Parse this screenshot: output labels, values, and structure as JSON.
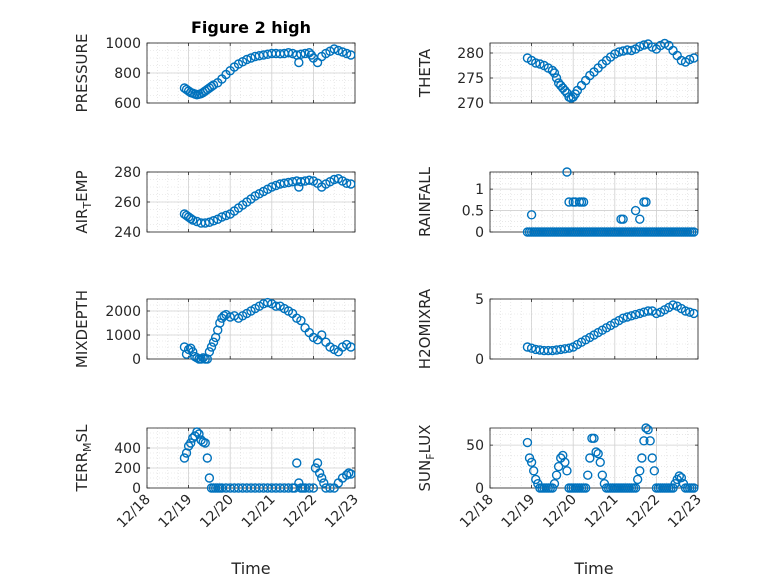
{
  "figure": {
    "background": "#ffffff",
    "marker_color": "#0072BD"
  },
  "chart_data": [
    {
      "type": "scatter",
      "title": "Figure 2 high",
      "ylabel": "PRESSURE",
      "xlabel": "",
      "xlim": [
        18,
        23
      ],
      "ylim": [
        600,
        1000
      ],
      "yticks": [
        600,
        800,
        1000
      ],
      "yticklabels": [
        "600",
        "800",
        "1000"
      ],
      "xtick_labels_shown": false,
      "grid": true,
      "x": [
        18.9,
        18.95,
        19.0,
        19.05,
        19.1,
        19.15,
        19.2,
        19.25,
        19.3,
        19.35,
        19.4,
        19.45,
        19.5,
        19.55,
        19.6,
        19.7,
        19.8,
        19.9,
        20.0,
        20.1,
        20.2,
        20.3,
        20.4,
        20.5,
        20.6,
        20.7,
        20.8,
        20.9,
        21.0,
        21.1,
        21.2,
        21.3,
        21.4,
        21.5,
        21.6,
        21.65,
        21.7,
        21.8,
        21.9,
        21.95,
        22.0,
        22.1,
        22.2,
        22.3,
        22.4,
        22.5,
        22.6,
        22.7,
        22.8,
        22.9
      ],
      "y": [
        700,
        690,
        680,
        670,
        665,
        660,
        655,
        658,
        662,
        670,
        680,
        690,
        700,
        710,
        720,
        735,
        760,
        790,
        815,
        840,
        860,
        875,
        890,
        900,
        910,
        915,
        920,
        925,
        930,
        930,
        928,
        930,
        935,
        930,
        920,
        870,
        925,
        930,
        935,
        920,
        900,
        870,
        910,
        930,
        945,
        960,
        950,
        940,
        930,
        920
      ]
    },
    {
      "type": "scatter",
      "ylabel": "THETA",
      "xlabel": "",
      "xlim": [
        18,
        23
      ],
      "ylim": [
        270,
        282
      ],
      "yticks": [
        270,
        275,
        280
      ],
      "yticklabels": [
        "270",
        "275",
        "280"
      ],
      "xtick_labels_shown": false,
      "grid": true,
      "x": [
        18.9,
        19.0,
        19.1,
        19.2,
        19.3,
        19.4,
        19.5,
        19.55,
        19.6,
        19.65,
        19.7,
        19.75,
        19.8,
        19.85,
        19.9,
        19.95,
        20.0,
        20.05,
        20.1,
        20.2,
        20.3,
        20.4,
        20.5,
        20.6,
        20.7,
        20.8,
        20.9,
        21.0,
        21.1,
        21.2,
        21.3,
        21.4,
        21.5,
        21.6,
        21.7,
        21.8,
        21.9,
        22.0,
        22.1,
        22.2,
        22.3,
        22.4,
        22.5,
        22.6,
        22.7,
        22.8,
        22.9
      ],
      "y": [
        279,
        278.5,
        278,
        277.8,
        277.5,
        277,
        276.5,
        276,
        275,
        274,
        273.5,
        273,
        272.5,
        272,
        271.2,
        271,
        271.2,
        271.8,
        272.5,
        273.5,
        274.5,
        275.5,
        276.2,
        277,
        277.8,
        278.5,
        279.2,
        279.8,
        280.2,
        280.4,
        280.6,
        280.5,
        280.8,
        281.3,
        281.6,
        281.8,
        281.2,
        280.8,
        281.5,
        281.9,
        281.5,
        280.5,
        279.5,
        278.5,
        278.2,
        278.7,
        279
      ]
    },
    {
      "type": "scatter",
      "ylabel": "AIR_TEMP",
      "xlabel": "",
      "xlim": [
        18,
        23
      ],
      "ylim": [
        240,
        280
      ],
      "yticks": [
        240,
        260,
        280
      ],
      "yticklabels": [
        "240",
        "260",
        "280"
      ],
      "xtick_labels_shown": false,
      "grid": true,
      "x": [
        18.9,
        18.95,
        19.0,
        19.05,
        19.1,
        19.2,
        19.3,
        19.4,
        19.5,
        19.6,
        19.7,
        19.8,
        19.9,
        20.0,
        20.1,
        20.2,
        20.3,
        20.4,
        20.5,
        20.6,
        20.7,
        20.8,
        20.9,
        21.0,
        21.1,
        21.2,
        21.3,
        21.4,
        21.5,
        21.6,
        21.65,
        21.7,
        21.8,
        21.9,
        22.0,
        22.1,
        22.2,
        22.3,
        22.4,
        22.5,
        22.6,
        22.7,
        22.8,
        22.9
      ],
      "y": [
        252,
        251,
        250,
        249,
        248,
        247,
        246,
        246,
        246.5,
        247.5,
        248.5,
        250,
        251,
        252,
        254,
        256,
        258,
        260,
        262,
        264,
        265.5,
        267,
        268.5,
        270,
        271,
        272,
        272.5,
        273,
        273.5,
        274,
        270,
        273.5,
        274,
        274.5,
        274,
        272.5,
        270,
        272,
        273.5,
        275,
        275.5,
        274,
        272.5,
        272
      ]
    },
    {
      "type": "scatter",
      "ylabel": "RAINFALL",
      "xlabel": "",
      "xlim": [
        18,
        23
      ],
      "ylim": [
        0,
        1.4
      ],
      "yticks": [
        0,
        0.5,
        1
      ],
      "yticklabels": [
        "0",
        "0.5",
        "1"
      ],
      "xtick_labels_shown": false,
      "grid": true,
      "x": [
        18.9,
        18.95,
        19.0,
        19.05,
        19.1,
        19.15,
        19.2,
        19.25,
        19.3,
        19.35,
        19.4,
        19.45,
        19.5,
        19.55,
        19.6,
        19.65,
        19.7,
        19.75,
        19.8,
        19.85,
        19.9,
        19.95,
        20.0,
        20.05,
        20.1,
        20.15,
        20.2,
        20.25,
        20.3,
        20.35,
        20.4,
        20.45,
        20.5,
        20.55,
        20.6,
        20.65,
        20.7,
        20.75,
        20.8,
        20.85,
        20.9,
        20.95,
        21.0,
        21.05,
        21.1,
        21.15,
        21.2,
        21.25,
        21.3,
        21.35,
        21.4,
        21.45,
        21.5,
        21.55,
        21.6,
        21.65,
        21.7,
        21.75,
        21.8,
        21.85,
        21.9,
        21.95,
        22.0,
        22.05,
        22.1,
        22.15,
        22.2,
        22.25,
        22.3,
        22.35,
        22.4,
        22.45,
        22.5,
        22.55,
        22.6,
        22.65,
        22.7,
        22.75,
        22.8,
        22.85,
        22.9,
        19.0,
        19.85,
        19.9,
        20.0,
        20.05,
        20.15,
        20.2,
        20.25,
        21.15,
        21.2,
        21.5,
        21.6,
        21.7,
        21.75
      ],
      "y": [
        0,
        0,
        0,
        0,
        0,
        0,
        0,
        0,
        0,
        0,
        0,
        0,
        0,
        0,
        0,
        0,
        0,
        0,
        0,
        0,
        0,
        0,
        0,
        0,
        0,
        0,
        0,
        0,
        0,
        0,
        0,
        0,
        0,
        0,
        0,
        0,
        0,
        0,
        0,
        0,
        0,
        0,
        0,
        0,
        0,
        0,
        0,
        0,
        0,
        0,
        0,
        0,
        0,
        0,
        0,
        0,
        0,
        0,
        0,
        0,
        0,
        0,
        0,
        0,
        0,
        0,
        0,
        0,
        0,
        0,
        0,
        0,
        0,
        0,
        0,
        0,
        0,
        0,
        0,
        0,
        0,
        0.4,
        1.4,
        0.7,
        0.7,
        0.7,
        0.7,
        0.7,
        0.7,
        0.3,
        0.3,
        0.5,
        0.3,
        0.7,
        0.7
      ]
    },
    {
      "type": "scatter",
      "ylabel": "MIXDEPTH",
      "xlabel": "",
      "xlim": [
        18,
        23
      ],
      "ylim": [
        0,
        2500
      ],
      "yticks": [
        0,
        1000,
        2000
      ],
      "yticklabels": [
        "0",
        "1000",
        "2000"
      ],
      "xtick_labels_shown": false,
      "grid": true,
      "x": [
        18.9,
        18.95,
        19.0,
        19.05,
        19.1,
        19.15,
        19.2,
        19.25,
        19.3,
        19.35,
        19.4,
        19.45,
        19.5,
        19.55,
        19.6,
        19.65,
        19.7,
        19.75,
        19.8,
        19.85,
        19.9,
        20.0,
        20.1,
        20.2,
        20.3,
        20.4,
        20.5,
        20.6,
        20.7,
        20.8,
        20.9,
        21.0,
        21.1,
        21.2,
        21.3,
        21.4,
        21.5,
        21.6,
        21.7,
        21.8,
        21.9,
        22.0,
        22.1,
        22.2,
        22.3,
        22.4,
        22.5,
        22.6,
        22.7,
        22.8,
        22.9
      ],
      "y": [
        500,
        200,
        400,
        450,
        300,
        100,
        50,
        0,
        0,
        50,
        0,
        0,
        300,
        500,
        700,
        900,
        1200,
        1500,
        1700,
        1800,
        1850,
        1750,
        1800,
        1700,
        1800,
        1900,
        2000,
        2100,
        2200,
        2300,
        2350,
        2300,
        2200,
        2200,
        2100,
        2000,
        1900,
        1700,
        1600,
        1300,
        1100,
        900,
        800,
        1000,
        700,
        500,
        400,
        300,
        500,
        600,
        500
      ]
    },
    {
      "type": "scatter",
      "ylabel": "H2OMIXRA",
      "xlabel": "",
      "xlim": [
        18,
        23
      ],
      "ylim": [
        0,
        5
      ],
      "yticks": [
        0,
        5
      ],
      "yticklabels": [
        "0",
        "5"
      ],
      "xtick_labels_shown": false,
      "grid": true,
      "x": [
        18.9,
        19.0,
        19.1,
        19.2,
        19.3,
        19.4,
        19.5,
        19.6,
        19.7,
        19.8,
        19.9,
        20.0,
        20.1,
        20.2,
        20.3,
        20.4,
        20.5,
        20.6,
        20.7,
        20.8,
        20.9,
        21.0,
        21.1,
        21.2,
        21.3,
        21.4,
        21.5,
        21.6,
        21.7,
        21.8,
        21.9,
        22.0,
        22.1,
        22.2,
        22.3,
        22.4,
        22.5,
        22.6,
        22.7,
        22.8,
        22.9
      ],
      "y": [
        1.0,
        0.9,
        0.8,
        0.75,
        0.7,
        0.7,
        0.7,
        0.75,
        0.8,
        0.85,
        0.9,
        1.0,
        1.2,
        1.4,
        1.6,
        1.8,
        2.0,
        2.2,
        2.4,
        2.6,
        2.8,
        3.0,
        3.2,
        3.4,
        3.5,
        3.6,
        3.7,
        3.8,
        3.9,
        4.0,
        4.0,
        3.8,
        3.9,
        4.1,
        4.3,
        4.5,
        4.4,
        4.2,
        4.0,
        3.9,
        3.8
      ]
    },
    {
      "type": "scatter",
      "ylabel": "TERR_MSL",
      "xlabel": "Time",
      "xlim": [
        18,
        23
      ],
      "ylim": [
        0,
        600
      ],
      "yticks": [
        0,
        200,
        400
      ],
      "yticklabels": [
        "0",
        "200",
        "400"
      ],
      "xticks": [
        18,
        19,
        20,
        21,
        22,
        23
      ],
      "xticklabels": [
        "12/18",
        "12/19",
        "12/20",
        "12/21",
        "12/22",
        "12/23"
      ],
      "grid": true,
      "x": [
        18.9,
        18.95,
        19.0,
        19.05,
        19.1,
        19.15,
        19.2,
        19.25,
        19.3,
        19.35,
        19.4,
        19.45,
        19.5,
        19.55,
        19.6,
        19.65,
        19.7,
        19.75,
        19.8,
        19.9,
        20.0,
        20.1,
        20.2,
        20.3,
        20.4,
        20.5,
        20.6,
        20.7,
        20.8,
        20.9,
        21.0,
        21.1,
        21.2,
        21.3,
        21.4,
        21.5,
        21.55,
        21.6,
        21.65,
        21.7,
        21.75,
        21.8,
        21.9,
        22.0,
        22.05,
        22.1,
        22.15,
        22.2,
        22.25,
        22.3,
        22.4,
        22.5,
        22.6,
        22.7,
        22.8,
        22.85,
        22.9
      ],
      "y": [
        300,
        350,
        420,
        450,
        500,
        520,
        560,
        540,
        480,
        460,
        450,
        300,
        100,
        0,
        0,
        0,
        0,
        0,
        0,
        0,
        0,
        0,
        0,
        0,
        0,
        0,
        0,
        0,
        0,
        0,
        0,
        0,
        0,
        0,
        0,
        0,
        0,
        250,
        50,
        0,
        0,
        0,
        0,
        0,
        200,
        250,
        150,
        100,
        50,
        0,
        0,
        0,
        50,
        100,
        130,
        150,
        140
      ]
    },
    {
      "type": "scatter",
      "ylabel": "SUN_FLUX",
      "xlabel": "Time",
      "xlim": [
        18,
        23
      ],
      "ylim": [
        0,
        70
      ],
      "yticks": [
        0,
        50
      ],
      "yticklabels": [
        "0",
        "50"
      ],
      "xticks": [
        18,
        19,
        20,
        21,
        22,
        23
      ],
      "xticklabels": [
        "12/18",
        "12/19",
        "12/20",
        "12/21",
        "12/22",
        "12/23"
      ],
      "grid": true,
      "x": [
        18.9,
        18.95,
        19.0,
        19.05,
        19.1,
        19.15,
        19.2,
        19.25,
        19.3,
        19.35,
        19.4,
        19.45,
        19.5,
        19.55,
        19.6,
        19.65,
        19.7,
        19.75,
        19.8,
        19.85,
        19.9,
        19.95,
        20.0,
        20.05,
        20.1,
        20.15,
        20.2,
        20.25,
        20.3,
        20.35,
        20.4,
        20.45,
        20.5,
        20.55,
        20.6,
        20.65,
        20.7,
        20.75,
        20.8,
        20.85,
        20.9,
        20.95,
        21.0,
        21.05,
        21.1,
        21.15,
        21.2,
        21.25,
        21.3,
        21.35,
        21.4,
        21.45,
        21.5,
        21.55,
        21.6,
        21.65,
        21.7,
        21.75,
        21.8,
        21.85,
        21.9,
        21.95,
        22.0,
        22.05,
        22.1,
        22.15,
        22.2,
        22.25,
        22.3,
        22.35,
        22.4,
        22.45,
        22.5,
        22.55,
        22.6,
        22.65,
        22.7,
        22.75,
        22.8,
        22.85,
        22.9
      ],
      "y": [
        53,
        35,
        30,
        20,
        10,
        5,
        0,
        0,
        0,
        0,
        0,
        0,
        0,
        5,
        15,
        25,
        35,
        38,
        30,
        20,
        0,
        0,
        0,
        0,
        0,
        0,
        0,
        0,
        0,
        15,
        35,
        58,
        58,
        42,
        40,
        30,
        15,
        5,
        0,
        0,
        0,
        0,
        0,
        0,
        0,
        0,
        0,
        0,
        0,
        0,
        0,
        0,
        0,
        10,
        20,
        35,
        55,
        70,
        68,
        55,
        35,
        20,
        0,
        0,
        0,
        0,
        0,
        0,
        0,
        0,
        0,
        5,
        10,
        14,
        12,
        5,
        0,
        0,
        0,
        0,
        0
      ]
    }
  ]
}
